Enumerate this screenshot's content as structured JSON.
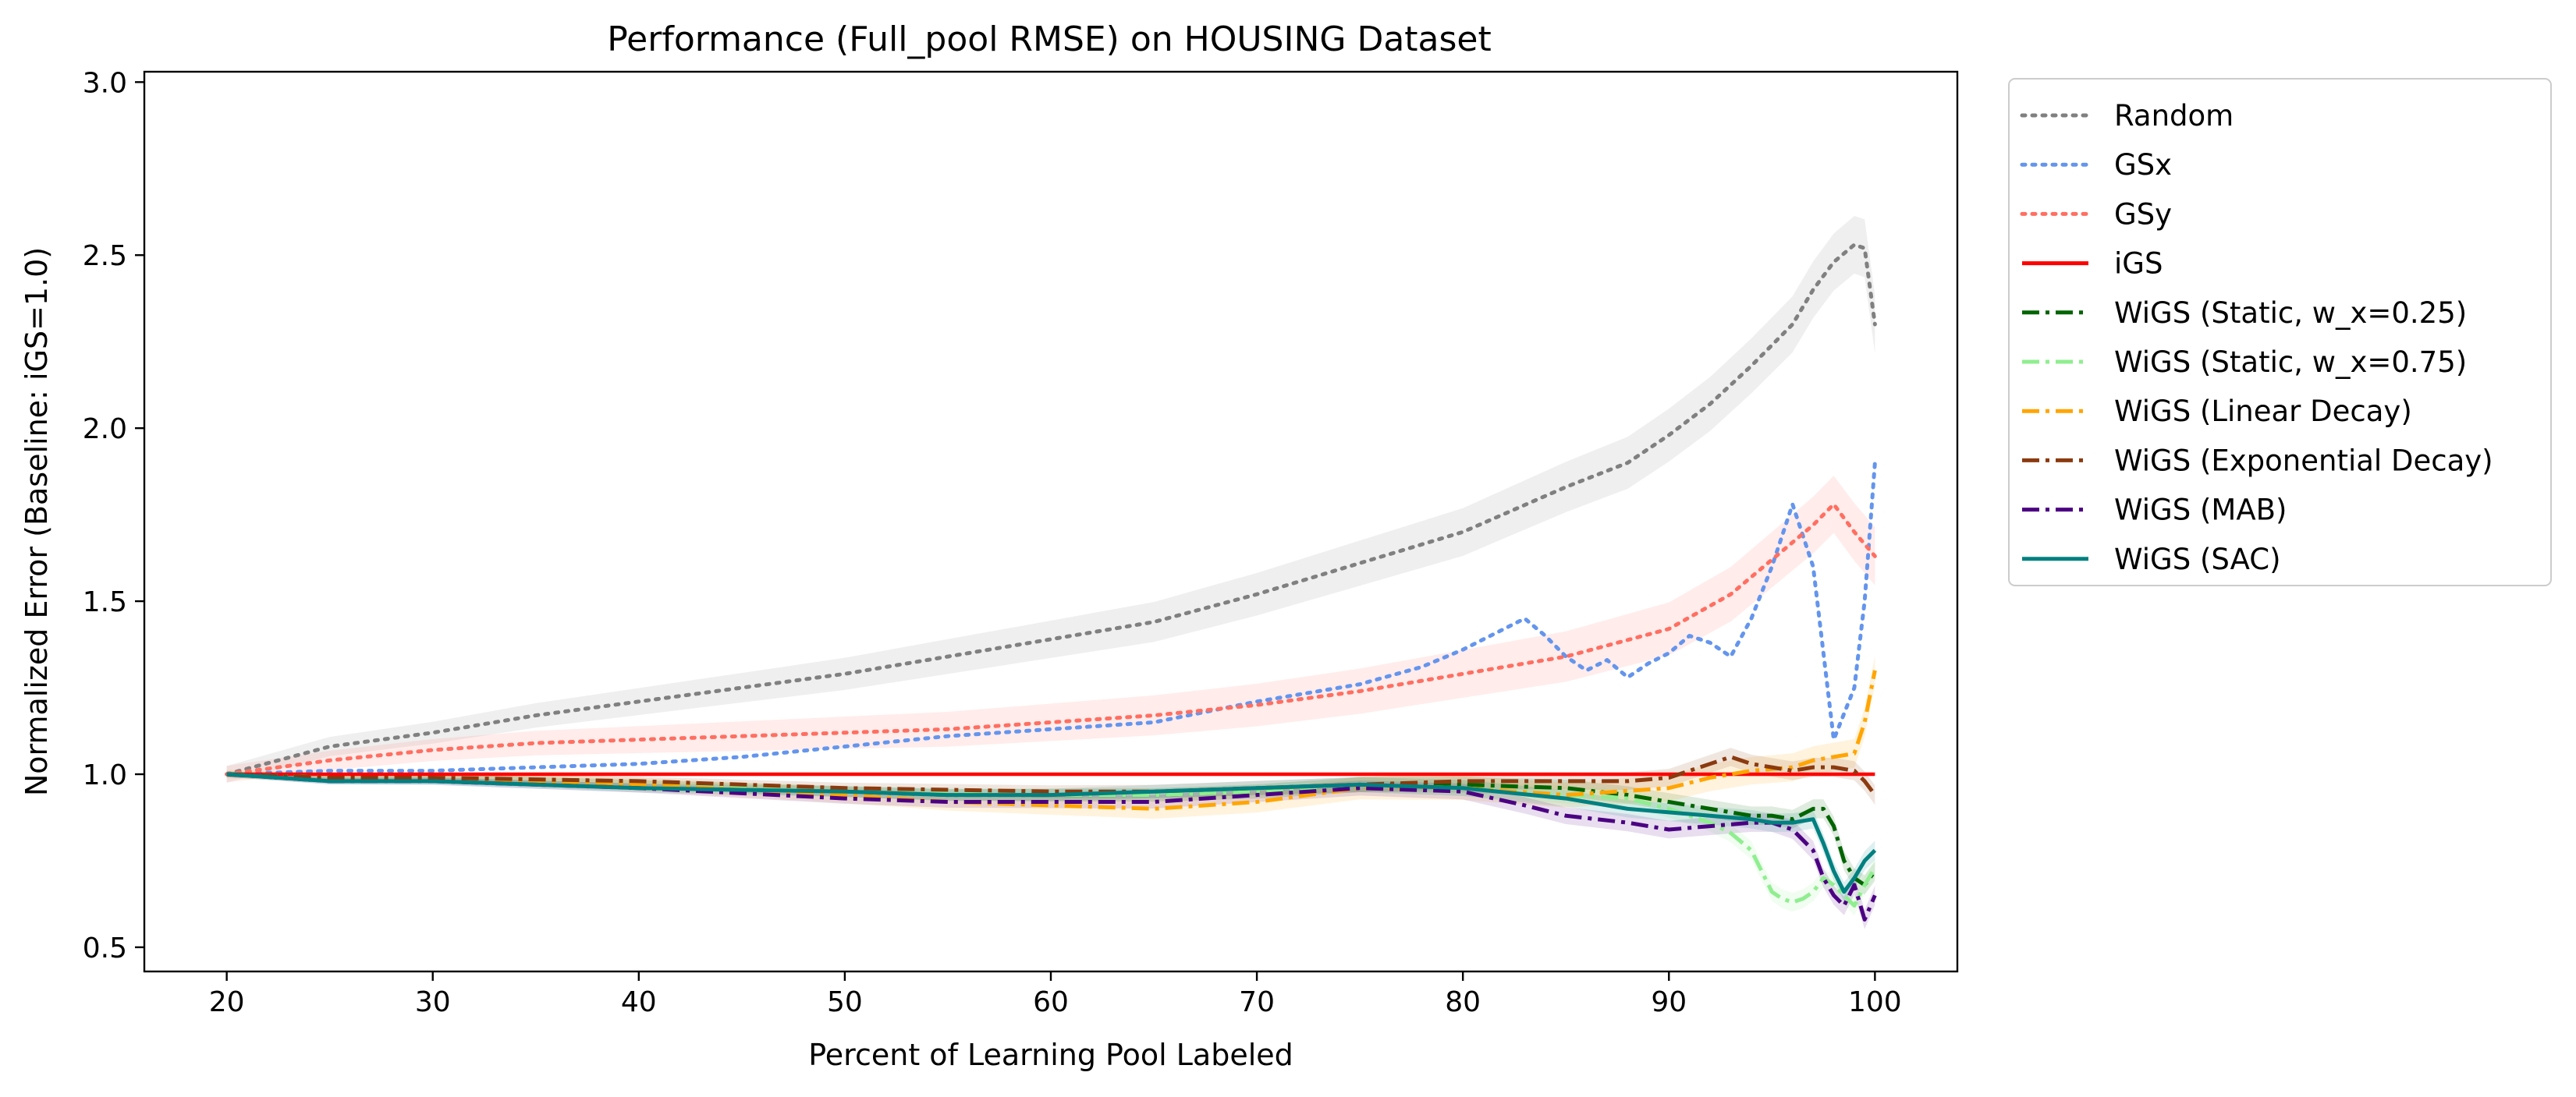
{
  "chart_data": {
    "type": "line",
    "title": "Performance (Full_pool RMSE) on HOUSING Dataset",
    "xlabel": "Percent of Learning Pool Labeled",
    "ylabel": "Normalized Error (Baseline: iGS=1.0)",
    "xlim": [
      16,
      104
    ],
    "ylim": [
      0.43,
      3.03
    ],
    "xticks": [
      "20",
      "30",
      "40",
      "50",
      "60",
      "70",
      "80",
      "90",
      "100"
    ],
    "yticks": [
      "0.5",
      "1.0",
      "1.5",
      "2.0",
      "2.5",
      "3.0"
    ],
    "grid": false,
    "legend_position": "outside-right",
    "series": [
      {
        "name": "Random",
        "color": "#808080",
        "dash": "dotted",
        "band": 0.06,
        "x": [
          20,
          25,
          30,
          35,
          40,
          45,
          50,
          55,
          60,
          65,
          70,
          75,
          80,
          85,
          88,
          90,
          92,
          94,
          96,
          97,
          98,
          99,
          99.5,
          100
        ],
        "y": [
          1.0,
          1.08,
          1.12,
          1.17,
          1.21,
          1.25,
          1.29,
          1.34,
          1.39,
          1.44,
          1.52,
          1.61,
          1.7,
          1.83,
          1.9,
          1.98,
          2.07,
          2.18,
          2.3,
          2.4,
          2.48,
          2.53,
          2.52,
          2.3
        ]
      },
      {
        "name": "GSx",
        "color": "#6495ED",
        "dash": "dotted",
        "band": 0.0,
        "x": [
          20,
          25,
          30,
          35,
          40,
          45,
          50,
          55,
          60,
          65,
          70,
          75,
          78,
          80,
          82,
          83,
          84,
          85,
          86,
          87,
          88,
          89,
          90,
          91,
          92,
          93,
          94,
          95,
          96,
          97,
          98,
          99,
          99.5,
          100
        ],
        "y": [
          1.0,
          1.01,
          1.01,
          1.02,
          1.03,
          1.05,
          1.08,
          1.11,
          1.13,
          1.15,
          1.21,
          1.26,
          1.31,
          1.36,
          1.42,
          1.45,
          1.4,
          1.34,
          1.3,
          1.33,
          1.28,
          1.32,
          1.35,
          1.4,
          1.38,
          1.34,
          1.45,
          1.6,
          1.78,
          1.6,
          1.1,
          1.25,
          1.5,
          1.9
        ]
      },
      {
        "name": "GSy",
        "color": "#FF6F61",
        "dash": "dotted",
        "band": 0.06,
        "x": [
          20,
          25,
          30,
          35,
          40,
          45,
          50,
          55,
          60,
          65,
          70,
          75,
          80,
          85,
          90,
          93,
          95,
          97,
          98,
          99,
          100
        ],
        "y": [
          1.0,
          1.04,
          1.07,
          1.09,
          1.1,
          1.11,
          1.12,
          1.13,
          1.15,
          1.17,
          1.2,
          1.24,
          1.29,
          1.34,
          1.42,
          1.52,
          1.62,
          1.72,
          1.78,
          1.7,
          1.63
        ]
      },
      {
        "name": "iGS",
        "color": "#FF0000",
        "dash": "solid",
        "band": 0.0,
        "x": [
          20,
          100
        ],
        "y": [
          1.0,
          1.0
        ]
      },
      {
        "name": "WiGS (Static, w_x=0.25)",
        "color": "#006400",
        "dash": "dashdot",
        "band": 0.02,
        "x": [
          20,
          25,
          30,
          40,
          50,
          55,
          60,
          65,
          70,
          75,
          80,
          85,
          88,
          90,
          92,
          94,
          95,
          96,
          97,
          97.5,
          98,
          98.5,
          99,
          99.5,
          100
        ],
        "y": [
          1.0,
          0.99,
          0.99,
          0.97,
          0.95,
          0.94,
          0.94,
          0.94,
          0.95,
          0.97,
          0.97,
          0.96,
          0.94,
          0.92,
          0.9,
          0.88,
          0.88,
          0.87,
          0.9,
          0.9,
          0.85,
          0.75,
          0.7,
          0.68,
          0.72
        ]
      },
      {
        "name": "WiGS (Static, w_x=0.75)",
        "color": "#90EE90",
        "dash": "dashdot",
        "band": 0.02,
        "x": [
          20,
          25,
          30,
          40,
          50,
          60,
          65,
          70,
          75,
          80,
          85,
          88,
          90,
          92,
          93,
          94,
          94.5,
          95,
          95.5,
          96,
          96.5,
          97,
          97.5,
          98,
          98.5,
          99,
          99.5,
          100
        ],
        "y": [
          1.0,
          0.99,
          0.99,
          0.97,
          0.95,
          0.94,
          0.94,
          0.95,
          0.97,
          0.96,
          0.94,
          0.93,
          0.9,
          0.86,
          0.83,
          0.78,
          0.72,
          0.66,
          0.64,
          0.63,
          0.64,
          0.66,
          0.7,
          0.68,
          0.65,
          0.62,
          0.68,
          0.73
        ]
      },
      {
        "name": "WiGS (Linear Decay)",
        "color": "#FFA500",
        "dash": "dashdot",
        "band": 0.03,
        "x": [
          20,
          25,
          30,
          40,
          50,
          55,
          60,
          65,
          70,
          75,
          80,
          85,
          90,
          92,
          94,
          96,
          97,
          98,
          99,
          99.5,
          100
        ],
        "y": [
          1.0,
          0.99,
          0.99,
          0.97,
          0.94,
          0.92,
          0.91,
          0.9,
          0.92,
          0.96,
          0.96,
          0.94,
          0.96,
          0.99,
          1.01,
          1.02,
          1.04,
          1.05,
          1.06,
          1.15,
          1.3
        ]
      },
      {
        "name": "WiGS (Exponential Decay)",
        "color": "#8B3A0F",
        "dash": "dashdot",
        "band": 0.02,
        "x": [
          20,
          25,
          30,
          40,
          50,
          60,
          65,
          70,
          75,
          80,
          85,
          88,
          90,
          91,
          92,
          93,
          94,
          95,
          96,
          97,
          98,
          99,
          99.5,
          100
        ],
        "y": [
          1.0,
          0.99,
          0.99,
          0.98,
          0.96,
          0.95,
          0.95,
          0.96,
          0.97,
          0.98,
          0.98,
          0.98,
          0.99,
          1.01,
          1.03,
          1.05,
          1.03,
          1.02,
          1.01,
          1.02,
          1.02,
          1.01,
          0.98,
          0.94
        ]
      },
      {
        "name": "WiGS (MAB)",
        "color": "#4B0082",
        "dash": "dashdot",
        "band": 0.02,
        "x": [
          20,
          25,
          30,
          40,
          50,
          55,
          60,
          65,
          70,
          75,
          80,
          83,
          85,
          88,
          90,
          92,
          94,
          95,
          96,
          97,
          97.5,
          98,
          98.5,
          99,
          99.5,
          100
        ],
        "y": [
          1.0,
          0.98,
          0.98,
          0.96,
          0.93,
          0.92,
          0.92,
          0.92,
          0.94,
          0.96,
          0.95,
          0.91,
          0.88,
          0.86,
          0.84,
          0.85,
          0.86,
          0.86,
          0.84,
          0.78,
          0.7,
          0.65,
          0.62,
          0.68,
          0.58,
          0.65
        ]
      },
      {
        "name": "WiGS (SAC)",
        "color": "#008080",
        "dash": "solid",
        "band": 0.02,
        "x": [
          20,
          25,
          30,
          40,
          50,
          55,
          60,
          65,
          70,
          75,
          80,
          85,
          88,
          90,
          92,
          94,
          95,
          96,
          97,
          97.5,
          98,
          98.5,
          99,
          99.5,
          100
        ],
        "y": [
          1.0,
          0.98,
          0.98,
          0.96,
          0.95,
          0.94,
          0.94,
          0.95,
          0.96,
          0.97,
          0.96,
          0.93,
          0.9,
          0.89,
          0.88,
          0.87,
          0.86,
          0.86,
          0.87,
          0.8,
          0.72,
          0.66,
          0.7,
          0.75,
          0.78
        ]
      }
    ]
  }
}
